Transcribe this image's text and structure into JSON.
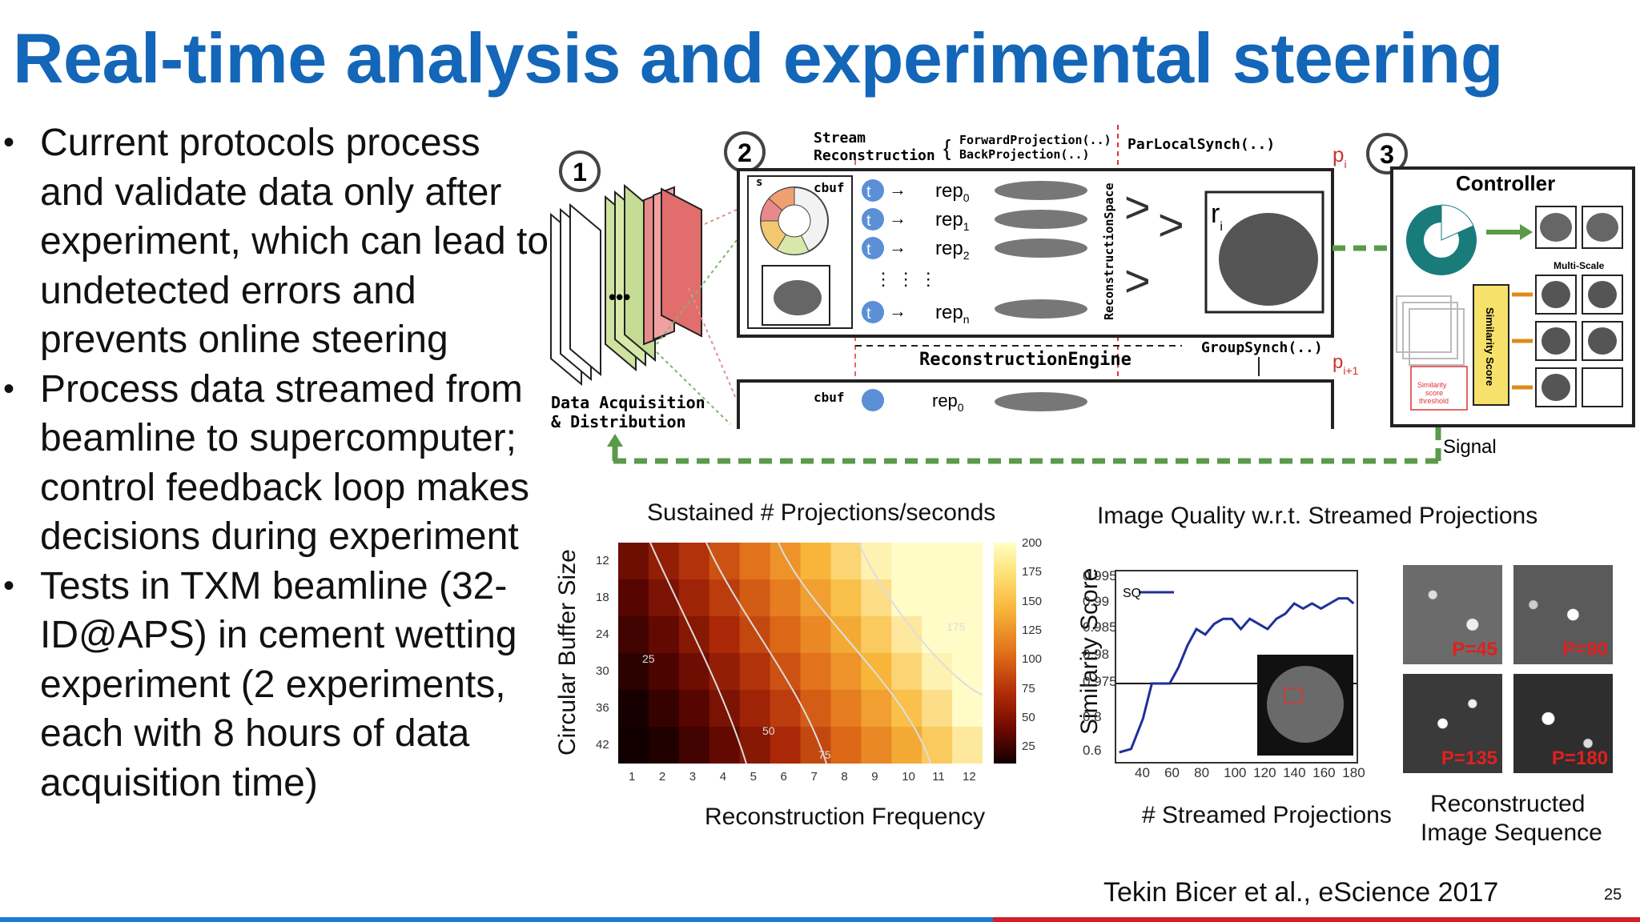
{
  "slide": {
    "title": "Real-time analysis and experimental steering",
    "bullets": [
      "Current protocols process and validate data only after experiment, which can lead to undetected errors and prevents online steering",
      "Process data streamed from beamline to supercomputer; control feedback loop makes decisions during experiment",
      "Tests in TXM beamline (32-ID@APS) in cement wetting experiment (2 experiments, each with 8 hours of data acquisition time)"
    ],
    "bullet_glyph": "•",
    "citation": "Tekin Bicer et al., eScience 2017",
    "page_number": "25",
    "colors": {
      "title": "#1366b8",
      "bar_left": "#1c7bd4",
      "bar_right": "#d32027",
      "teal": "#1a7b7b",
      "green_dash": "#5a9a4a"
    }
  },
  "diagram": {
    "step1": "1",
    "step2": "2",
    "step3": "3",
    "data_acq_line1": "Data Acquisition",
    "data_acq_line2": "& Distribution",
    "stream_line1": "Stream",
    "stream_line2": "Reconstruction",
    "forward_proj": "ForwardProjection(..)",
    "back_proj": "BackProjection(..)",
    "par_local": "ParLocalSynch(..)",
    "group_synch": "GroupSynch(..)",
    "recon_engine": "ReconstructionEngine",
    "recon_space": "ReconstructionSpace",
    "controller": "Controller",
    "multi_scale": "Multi-Scale",
    "similarity_score": "Similarity Score",
    "signal": "Signal",
    "cbuf": "cbuf",
    "s_label": "s",
    "p_i": "p",
    "p_i_sub": "i",
    "p_i1_sub": "i+1",
    "r_i": "r",
    "r_i_sub": "i",
    "rep_label": "rep",
    "t_label": "t",
    "rep_subs": [
      "0",
      "1",
      "2",
      "n"
    ],
    "sim_thresh_line1": "Similarity",
    "sim_thresh_line2": "score",
    "sim_thresh_line3": "threshold"
  },
  "heatmap": {
    "title": "Sustained # Projections/seconds",
    "xlabel": "Reconstruction Frequency",
    "ylabel": "Circular Buffer Size",
    "x_ticks": [
      "1",
      "2",
      "3",
      "4",
      "5",
      "6",
      "7",
      "8",
      "9",
      "10",
      "11",
      "12"
    ],
    "y_ticks": [
      "12",
      "18",
      "24",
      "30",
      "36",
      "42"
    ],
    "colorbar_ticks": [
      "200",
      "175",
      "150",
      "125",
      "100",
      "75",
      "50",
      "25"
    ],
    "contour_labels": [
      "25",
      "50",
      "75",
      "175"
    ]
  },
  "chart_data": {
    "type": "line",
    "title": "Image Quality w.r.t. Streamed Projections",
    "xlabel": "# Streamed Projections",
    "ylabel": "Similarity Score",
    "x_ticks": [
      "40",
      "60",
      "80",
      "100",
      "120",
      "140",
      "160",
      "180"
    ],
    "y_ticks": [
      "0.995",
      "0.99",
      "0.985",
      "0.98",
      "0.975",
      "0.8",
      "0.6"
    ],
    "series": [
      {
        "name": "SQ",
        "x": [
          22,
          30,
          38,
          44,
          50,
          56,
          62,
          68,
          74,
          80,
          86,
          92,
          98,
          104,
          110,
          116,
          122,
          128,
          134,
          140,
          146,
          152,
          158,
          164,
          170,
          176,
          180
        ],
        "y": [
          0.6,
          0.62,
          0.8,
          0.975,
          0.975,
          0.975,
          0.978,
          0.982,
          0.985,
          0.984,
          0.986,
          0.987,
          0.987,
          0.985,
          0.987,
          0.986,
          0.985,
          0.987,
          0.988,
          0.99,
          0.989,
          0.99,
          0.989,
          0.99,
          0.991,
          0.991,
          0.99
        ]
      }
    ],
    "threshold_y": 0.975,
    "images_caption_line1": "Reconstructed",
    "images_caption_line2": "Image Sequence",
    "image_labels": [
      "P=45",
      "P=90",
      "P=135",
      "P=180"
    ]
  }
}
